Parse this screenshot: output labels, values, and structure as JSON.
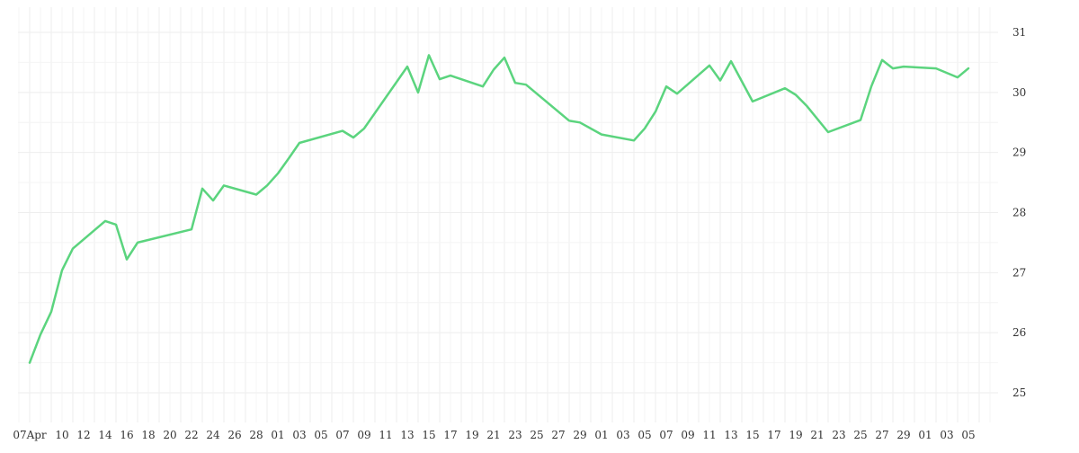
{
  "chart_data": {
    "type": "line",
    "title": "",
    "xlabel": "",
    "ylabel": "",
    "ylim": [
      24.5,
      31.2
    ],
    "y_ticks": [
      25,
      26,
      27,
      28,
      29,
      30,
      31
    ],
    "grid": true,
    "x_tick_labels": [
      "07Apr",
      "10",
      "12",
      "14",
      "16",
      "18",
      "20",
      "22",
      "24",
      "26",
      "28",
      "01",
      "03",
      "05",
      "07",
      "09",
      "11",
      "13",
      "15",
      "17",
      "19",
      "21",
      "23",
      "25",
      "27",
      "29",
      "01",
      "03",
      "05",
      "07",
      "09",
      "11",
      "13",
      "15",
      "17",
      "19",
      "21",
      "23",
      "25",
      "27",
      "29",
      "01",
      "03",
      "05"
    ],
    "series": [
      {
        "color": "#5bd47e",
        "points": [
          [
            "2024-04-07",
            25.5
          ],
          [
            "2024-04-08",
            25.97
          ],
          [
            "2024-04-09",
            26.35
          ],
          [
            "2024-04-10",
            27.04
          ],
          [
            "2024-04-11",
            27.4
          ],
          [
            "2024-04-14",
            27.86
          ],
          [
            "2024-04-15",
            27.8
          ],
          [
            "2024-04-16",
            27.22
          ],
          [
            "2024-04-17",
            27.5
          ],
          [
            "2024-04-22",
            27.72
          ],
          [
            "2024-04-23",
            28.4
          ],
          [
            "2024-04-24",
            28.2
          ],
          [
            "2024-04-25",
            28.45
          ],
          [
            "2024-04-28",
            28.3
          ],
          [
            "2024-04-29",
            28.45
          ],
          [
            "2024-04-30",
            28.65
          ],
          [
            "2024-05-01",
            28.9
          ],
          [
            "2024-05-02",
            29.16
          ],
          [
            "2024-05-06",
            29.36
          ],
          [
            "2024-05-07",
            29.25
          ],
          [
            "2024-05-08",
            29.4
          ],
          [
            "2024-05-12",
            30.43
          ],
          [
            "2024-05-13",
            30.0
          ],
          [
            "2024-05-14",
            30.62
          ],
          [
            "2024-05-15",
            30.22
          ],
          [
            "2024-05-16",
            30.28
          ],
          [
            "2024-05-19",
            30.1
          ],
          [
            "2024-05-20",
            30.38
          ],
          [
            "2024-05-21",
            30.58
          ],
          [
            "2024-05-22",
            30.16
          ],
          [
            "2024-05-23",
            30.13
          ],
          [
            "2024-05-27",
            29.53
          ],
          [
            "2024-05-28",
            29.5
          ],
          [
            "2024-05-30",
            29.3
          ],
          [
            "2024-06-02",
            29.2
          ],
          [
            "2024-06-03",
            29.4
          ],
          [
            "2024-06-04",
            29.68
          ],
          [
            "2024-06-05",
            30.1
          ],
          [
            "2024-06-06",
            29.98
          ],
          [
            "2024-06-09",
            30.45
          ],
          [
            "2024-06-10",
            30.2
          ],
          [
            "2024-06-11",
            30.52
          ],
          [
            "2024-06-13",
            29.85
          ],
          [
            "2024-06-16",
            30.07
          ],
          [
            "2024-06-17",
            29.96
          ],
          [
            "2024-06-18",
            29.78
          ],
          [
            "2024-06-20",
            29.34
          ],
          [
            "2024-06-23",
            29.54
          ],
          [
            "2024-06-24",
            30.1
          ],
          [
            "2024-06-25",
            30.54
          ],
          [
            "2024-06-26",
            30.4
          ],
          [
            "2024-06-27",
            30.43
          ],
          [
            "2024-06-30",
            30.4
          ],
          [
            "2024-07-02",
            30.25
          ],
          [
            "2024-07-03",
            30.4
          ]
        ]
      }
    ]
  }
}
